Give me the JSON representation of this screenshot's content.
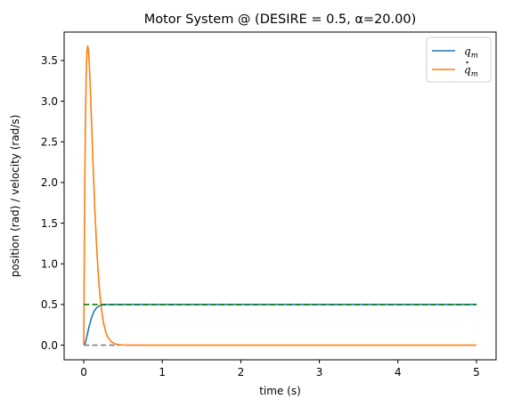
{
  "chart_data": {
    "type": "line",
    "title": "Motor System @ (DESIRE = 0.5, α=20.00)",
    "xlabel": "time (s)",
    "ylabel": "position (rad) / velocity (rad/s)",
    "xlim": [
      -0.25,
      5.25
    ],
    "ylim": [
      -0.18,
      3.85
    ],
    "xticks": [
      0,
      1,
      2,
      3,
      4,
      5
    ],
    "xtick_labels": [
      "0",
      "1",
      "2",
      "3",
      "4",
      "5"
    ],
    "yticks": [
      0.0,
      0.5,
      1.0,
      1.5,
      2.0,
      2.5,
      3.0,
      3.5
    ],
    "ytick_labels": [
      "0.0",
      "0.5",
      "1.0",
      "1.5",
      "2.0",
      "2.5",
      "3.0",
      "3.5"
    ],
    "grid": false,
    "legend_position": "top-right",
    "series": [
      {
        "name": "q_m",
        "legend_label": "q",
        "legend_sub": "m",
        "color": "#1f77b4",
        "style": "solid",
        "x": [
          0,
          0.01,
          0.02,
          0.03,
          0.05,
          0.07,
          0.1,
          0.13,
          0.16,
          0.2,
          0.25,
          0.3,
          0.35,
          0.4,
          0.5,
          0.6,
          0.8,
          1,
          2,
          3,
          4,
          5
        ],
        "y": [
          0,
          0.008,
          0.031,
          0.065,
          0.152,
          0.237,
          0.341,
          0.414,
          0.456,
          0.485,
          0.496,
          0.499,
          0.5,
          0.5,
          0.5,
          0.5,
          0.5,
          0.5,
          0.5,
          0.5,
          0.5,
          0.5
        ]
      },
      {
        "name": "qdot_m",
        "legend_label": "q",
        "legend_sub": "m",
        "legend_dot": true,
        "color": "#ff7f0e",
        "style": "solid",
        "x": [
          0,
          0.01,
          0.02,
          0.03,
          0.04,
          0.05,
          0.06,
          0.07,
          0.08,
          0.1,
          0.12,
          0.14,
          0.16,
          0.18,
          0.2,
          0.22,
          0.25,
          0.28,
          0.3,
          0.35,
          0.4,
          0.45,
          0.5,
          0.6,
          0.8,
          1,
          2,
          3,
          4,
          5
        ],
        "y": [
          0,
          1.64,
          2.68,
          3.29,
          3.6,
          3.68,
          3.62,
          3.46,
          3.25,
          2.72,
          2.18,
          1.69,
          1.28,
          0.94,
          0.68,
          0.48,
          0.28,
          0.16,
          0.11,
          0.04,
          0.015,
          0.005,
          0.002,
          0,
          0,
          0,
          0,
          0,
          0,
          0
        ]
      },
      {
        "name": "desired position",
        "color": "#008000",
        "style": "dashed",
        "x": [
          0,
          5
        ],
        "y": [
          0.5,
          0.5
        ]
      },
      {
        "name": "desired velocity",
        "color": "#808080",
        "style": "dashed",
        "x": [
          0,
          0.45
        ],
        "y": [
          0,
          0
        ]
      }
    ]
  }
}
